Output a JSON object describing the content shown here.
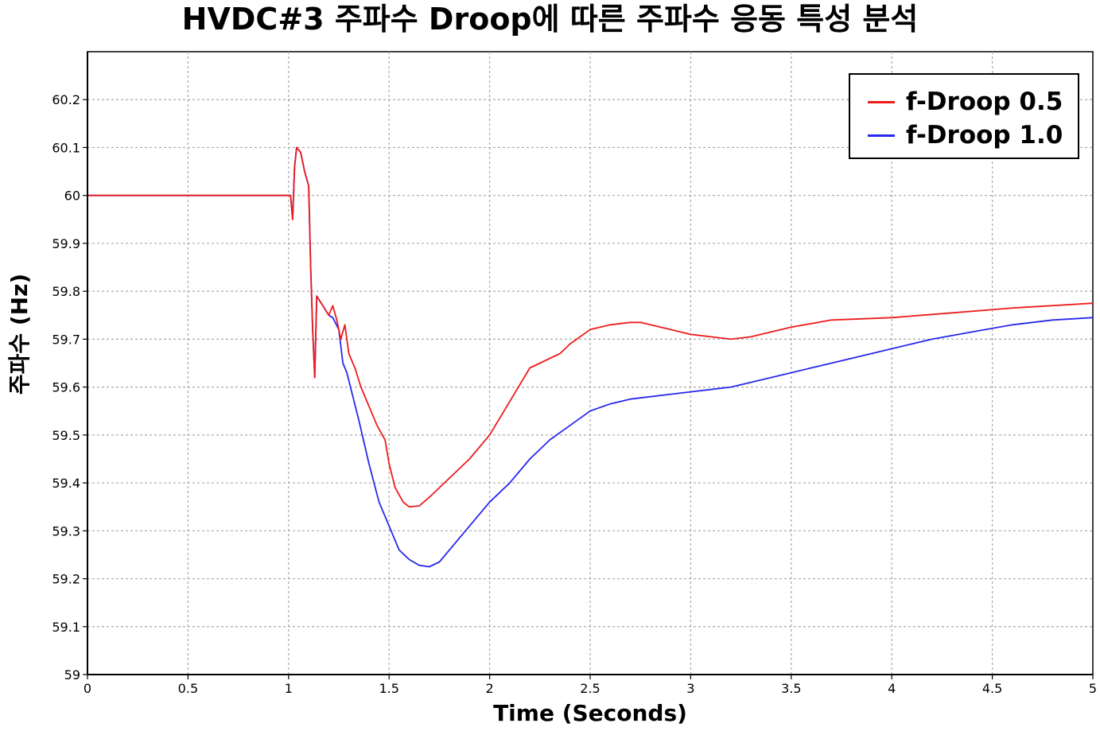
{
  "chart_data": {
    "type": "line",
    "title": "HVDC#3 주파수 Droop에 따른 주파수 응동 특성 분석",
    "xlabel": "Time (Seconds)",
    "ylabel": "주파수 (Hz)",
    "xlim": [
      0,
      5
    ],
    "ylim": [
      59,
      60.3
    ],
    "xticks": [
      "0",
      "0.5",
      "1",
      "1.5",
      "2",
      "2.5",
      "3",
      "3.5",
      "4",
      "4.5",
      "5"
    ],
    "yticks": [
      "59",
      "59.1",
      "59.2",
      "59.3",
      "59.4",
      "59.5",
      "59.6",
      "59.7",
      "59.8",
      "59.9",
      "60",
      "60.1",
      "60.2"
    ],
    "grid": true,
    "legend_position": "top-right",
    "series": [
      {
        "name": "f-Droop 0.5",
        "color": "#ee1c1c",
        "x": [
          0,
          1.0,
          1.01,
          1.02,
          1.03,
          1.04,
          1.06,
          1.08,
          1.1,
          1.11,
          1.12,
          1.13,
          1.14,
          1.17,
          1.2,
          1.22,
          1.24,
          1.26,
          1.28,
          1.3,
          1.33,
          1.36,
          1.4,
          1.44,
          1.48,
          1.5,
          1.53,
          1.57,
          1.6,
          1.65,
          1.7,
          1.75,
          1.8,
          1.9,
          2.0,
          2.1,
          2.2,
          2.3,
          2.35,
          2.4,
          2.5,
          2.6,
          2.7,
          2.75,
          2.8,
          2.9,
          3.0,
          3.1,
          3.2,
          3.3,
          3.4,
          3.5,
          3.7,
          4.0,
          4.3,
          4.6,
          5.0
        ],
        "y": [
          60.0,
          60.0,
          60.0,
          59.95,
          60.06,
          60.1,
          60.09,
          60.05,
          60.02,
          59.85,
          59.72,
          59.62,
          59.79,
          59.77,
          59.75,
          59.77,
          59.74,
          59.7,
          59.73,
          59.67,
          59.64,
          59.6,
          59.56,
          59.52,
          59.49,
          59.44,
          59.39,
          59.36,
          59.35,
          59.352,
          59.37,
          59.39,
          59.41,
          59.45,
          59.5,
          59.57,
          59.64,
          59.66,
          59.67,
          59.69,
          59.72,
          59.73,
          59.735,
          59.735,
          59.73,
          59.72,
          59.71,
          59.705,
          59.7,
          59.705,
          59.715,
          59.725,
          59.74,
          59.745,
          59.755,
          59.765,
          59.775
        ]
      },
      {
        "name": "f-Droop 1.0",
        "color": "#2828ee",
        "x": [
          0,
          1.0,
          1.01,
          1.02,
          1.03,
          1.04,
          1.06,
          1.08,
          1.1,
          1.11,
          1.12,
          1.13,
          1.14,
          1.17,
          1.2,
          1.22,
          1.25,
          1.27,
          1.29,
          1.32,
          1.35,
          1.4,
          1.45,
          1.5,
          1.55,
          1.6,
          1.65,
          1.7,
          1.75,
          1.8,
          1.9,
          2.0,
          2.1,
          2.2,
          2.3,
          2.4,
          2.5,
          2.6,
          2.7,
          2.8,
          2.9,
          3.0,
          3.2,
          3.4,
          3.6,
          3.8,
          4.0,
          4.2,
          4.4,
          4.6,
          4.8,
          5.0
        ],
        "y": [
          60.0,
          60.0,
          60.0,
          59.95,
          60.06,
          60.1,
          60.09,
          60.05,
          60.02,
          59.85,
          59.72,
          59.62,
          59.79,
          59.77,
          59.75,
          59.745,
          59.72,
          59.65,
          59.63,
          59.58,
          59.53,
          59.44,
          59.36,
          59.31,
          59.26,
          59.24,
          59.228,
          59.225,
          59.235,
          59.26,
          59.31,
          59.36,
          59.4,
          59.45,
          59.49,
          59.52,
          59.55,
          59.565,
          59.575,
          59.58,
          59.585,
          59.59,
          59.6,
          59.62,
          59.64,
          59.66,
          59.68,
          59.7,
          59.715,
          59.73,
          59.74,
          59.745
        ]
      }
    ]
  }
}
